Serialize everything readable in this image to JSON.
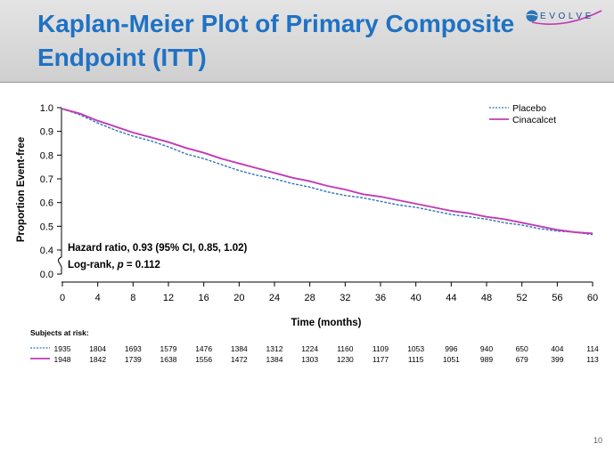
{
  "slide": {
    "title_line1": "Kaplan-Meier Plot of Primary Composite",
    "title_line2": "Endpoint (ITT)",
    "logo_text": "EVOLVE",
    "page_number": "10",
    "colors": {
      "title": "#1f72c4",
      "band": "#d9d9d9"
    }
  },
  "chart_data": {
    "type": "line",
    "title": "",
    "xlabel": "Time (months)",
    "ylabel": "Proportion Event-free",
    "xlim": [
      0,
      60
    ],
    "ylim": [
      0.0,
      1.0
    ],
    "y_axis_break": [
      0.0,
      0.4
    ],
    "xticks": [
      0,
      4,
      8,
      12,
      16,
      20,
      24,
      28,
      32,
      36,
      40,
      44,
      48,
      52,
      56,
      60
    ],
    "yticks": [
      0.0,
      0.4,
      0.5,
      0.6,
      0.7,
      0.8,
      0.9,
      1.0
    ],
    "ytick_labels": [
      "0.0",
      "0.4",
      "0.5",
      "0.6",
      "0.7",
      "0.8",
      "0.9",
      "1.0"
    ],
    "grid": false,
    "legend_position": "top-right",
    "series": [
      {
        "name": "Placebo",
        "color": "#2e75b6",
        "style": "dashed",
        "x": [
          0,
          2,
          4,
          6,
          8,
          10,
          12,
          14,
          16,
          18,
          20,
          22,
          24,
          26,
          28,
          30,
          32,
          34,
          36,
          38,
          40,
          42,
          44,
          46,
          48,
          50,
          52,
          54,
          56,
          58,
          60
        ],
        "y": [
          0.995,
          0.97,
          0.935,
          0.905,
          0.88,
          0.86,
          0.835,
          0.805,
          0.785,
          0.76,
          0.735,
          0.715,
          0.7,
          0.68,
          0.665,
          0.645,
          0.63,
          0.62,
          0.605,
          0.59,
          0.58,
          0.565,
          0.55,
          0.54,
          0.53,
          0.515,
          0.505,
          0.49,
          0.48,
          0.475,
          0.465
        ]
      },
      {
        "name": "Cinacalcet",
        "color": "#c23bb5",
        "style": "solid",
        "x": [
          0,
          2,
          4,
          6,
          8,
          10,
          12,
          14,
          16,
          18,
          20,
          22,
          24,
          26,
          28,
          30,
          32,
          34,
          36,
          38,
          40,
          42,
          44,
          46,
          48,
          50,
          52,
          54,
          56,
          58,
          60
        ],
        "y": [
          0.995,
          0.975,
          0.945,
          0.92,
          0.895,
          0.875,
          0.855,
          0.83,
          0.81,
          0.785,
          0.765,
          0.745,
          0.725,
          0.705,
          0.69,
          0.67,
          0.655,
          0.635,
          0.625,
          0.61,
          0.595,
          0.58,
          0.565,
          0.555,
          0.54,
          0.53,
          0.515,
          0.5,
          0.485,
          0.475,
          0.47
        ]
      }
    ],
    "annotations": {
      "hazard_ratio": "Hazard ratio, 0.93 (95% CI, 0.85, 1.02)",
      "logrank_prefix": "Log-rank, ",
      "logrank_p": "p",
      "logrank_suffix": " = 0.112"
    },
    "risk_table": {
      "title": "Subjects at risk:",
      "placebo": [
        "1935",
        "1804",
        "1693",
        "1579",
        "1476",
        "1384",
        "1312",
        "1224",
        "1160",
        "1109",
        "1053",
        "996",
        "940",
        "650",
        "404",
        "114"
      ],
      "cinacalcet": [
        "1948",
        "1842",
        "1739",
        "1638",
        "1556",
        "1472",
        "1384",
        "1303",
        "1230",
        "1177",
        "1115",
        "1051",
        "989",
        "679",
        "399",
        "113"
      ]
    }
  }
}
